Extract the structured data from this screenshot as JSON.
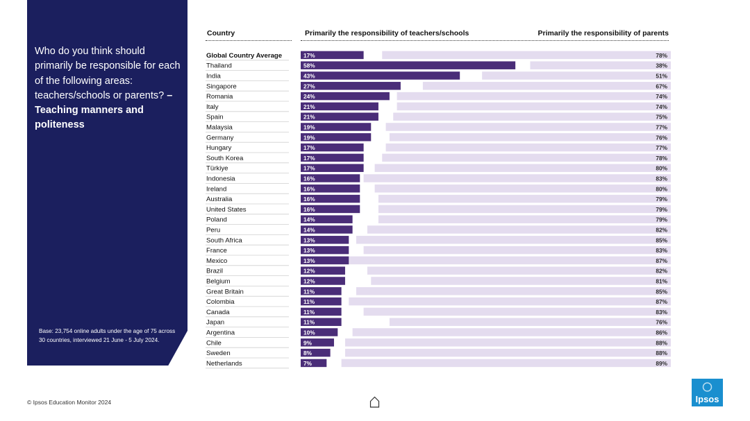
{
  "question": {
    "text": "Who do you think should primarily be responsible for each of the following areas: teachers/schools or parents?",
    "topic": "– Teaching manners and politeness"
  },
  "base_note": "Base: 23,754 online adults under the age of 75 across 30 countries, interviewed 21 June - 5 July 2024.",
  "headers": {
    "country": "Country",
    "teachers": "Primarily the responsibility of teachers/schools",
    "parents": "Primarily the responsibility of parents"
  },
  "footer": "© Ipsos Education Monitor 2024",
  "logo_text": "Ipsos",
  "colors": {
    "panel": "#1b1f5e",
    "teachers_bar": "#4a2d78",
    "parents_bar": "#e4dcef",
    "logo": "#1a8fcf"
  },
  "chart_data": {
    "type": "bar",
    "orientation": "horizontal",
    "categories": [
      "Global Country Average",
      "Thailand",
      "India",
      "Singapore",
      "Romania",
      "Italy",
      "Spain",
      "Malaysia",
      "Germany",
      "Hungary",
      "South Korea",
      "Türkiye",
      "Indonesia",
      "Ireland",
      "Australia",
      "United States",
      "Poland",
      "Peru",
      "South Africa",
      "France",
      "Mexico",
      "Brazil",
      "Belgium",
      "Great Britain",
      "Colombia",
      "Canada",
      "Japan",
      "Argentina",
      "Chile",
      "Sweden",
      "Netherlands"
    ],
    "series": [
      {
        "name": "Primarily the responsibility of teachers/schools",
        "values": [
          17,
          58,
          43,
          27,
          24,
          21,
          21,
          19,
          19,
          17,
          17,
          17,
          16,
          16,
          16,
          16,
          14,
          14,
          13,
          13,
          13,
          12,
          12,
          11,
          11,
          11,
          11,
          10,
          9,
          8,
          7
        ]
      },
      {
        "name": "Primarily the responsibility of parents",
        "values": [
          78,
          38,
          51,
          67,
          74,
          74,
          75,
          77,
          76,
          77,
          78,
          80,
          83,
          80,
          79,
          79,
          79,
          82,
          85,
          83,
          87,
          82,
          81,
          85,
          87,
          83,
          76,
          86,
          88,
          88,
          89
        ]
      }
    ],
    "value_labels": {
      "teachers": [
        "17%",
        "58%",
        "43%",
        "27%",
        "24%",
        "21%",
        "21%",
        "19%",
        "19%",
        "17%",
        "17%",
        "17%",
        "16%",
        "16%",
        "16%",
        "16%",
        "14%",
        "14%",
        "13%",
        "13%",
        "13%",
        "12%",
        "12%",
        "11%",
        "11%",
        "11%",
        "11%",
        "10%",
        "9%",
        "8%",
        "7%"
      ],
      "parents": [
        "78%",
        "38%",
        "51%",
        "67%",
        "74%",
        "74%",
        "75%",
        "77%",
        "76%",
        "77%",
        "78%",
        "80%",
        "83%",
        "80%",
        "79%",
        "79%",
        "79%",
        "82%",
        "85%",
        "83%",
        "87%",
        "82%",
        "81%",
        "85%",
        "87%",
        "83%",
        "76%",
        "86%",
        "88%",
        "88%",
        "89%"
      ]
    },
    "xlim": [
      0,
      100
    ],
    "grid": false,
    "legend": "top"
  }
}
